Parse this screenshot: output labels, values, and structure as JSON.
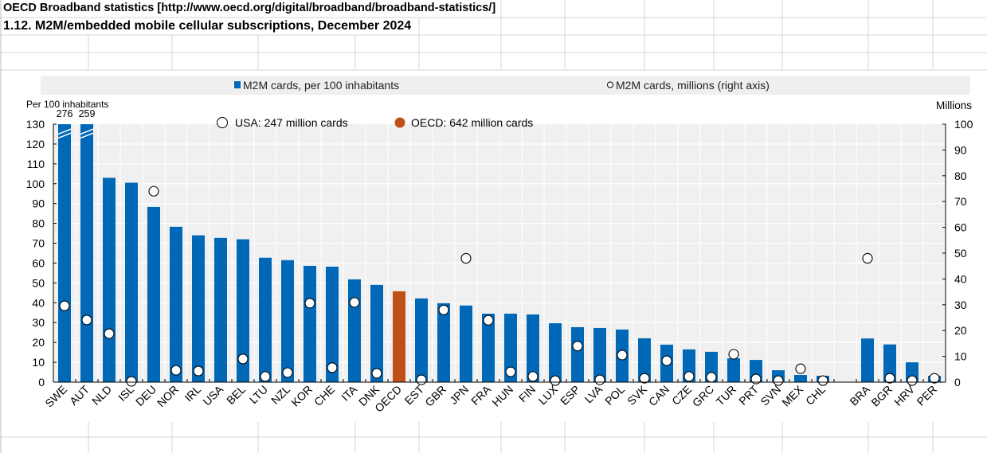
{
  "header": {
    "source": "OECD Broadband statistics [http://www.oecd.org/digital/broadband/broadband-statistics/]",
    "title": "1.12. M2M/embedded mobile cellular subscriptions, December 2024"
  },
  "colors": {
    "bar": "#0068b7",
    "oecd_bar": "#c0501a",
    "plot_bg": "#f0f0f0",
    "legend_bg": "#efefef"
  },
  "chart_data": {
    "type": "bar",
    "title": "1.12. M2M/embedded mobile cellular subscriptions, December 2024",
    "ylabel_left": "Per 100 inhabitants",
    "ylabel_right": "Millions",
    "ylim_left": [
      0,
      130
    ],
    "ylim_right": [
      0,
      100
    ],
    "yticks_left": [
      0,
      10,
      20,
      30,
      40,
      50,
      60,
      70,
      80,
      90,
      100,
      110,
      120,
      130
    ],
    "yticks_right": [
      0,
      10,
      20,
      30,
      40,
      50,
      60,
      70,
      80,
      90,
      100
    ],
    "grid": true,
    "legend_position": "top",
    "legend": [
      {
        "label": "M2M cards, per 100 inhabitants",
        "marker": "square"
      },
      {
        "label": "M2M cards, millions (right axis)",
        "marker": "circle"
      }
    ],
    "annotations": [
      {
        "text": "USA: 247 million cards",
        "marker": "hollow-circle"
      },
      {
        "text": "OECD: 642 million cards",
        "marker": "filled-circle"
      }
    ],
    "categories": [
      "SWE",
      "AUT",
      "NLD",
      "ISL",
      "DEU",
      "NOR",
      "IRL",
      "USA",
      "BEL",
      "LTU",
      "NZL",
      "KOR",
      "CHE",
      "ITA",
      "DNK",
      "OECD",
      "EST",
      "GBR",
      "JPN",
      "FRA",
      "HUN",
      "FIN",
      "LUX",
      "ESP",
      "LVA",
      "POL",
      "SVK",
      "CAN",
      "CZE",
      "GRC",
      "TUR",
      "PRT",
      "SVN",
      "MEX",
      "CHL",
      "",
      "BRA",
      "BGR",
      "HRV",
      "PER"
    ],
    "series": [
      {
        "name": "M2M cards, per 100 inhabitants",
        "axis": "left",
        "values": [
          276,
          259,
          103,
          100.5,
          88.3,
          78.3,
          74,
          72.7,
          72,
          62.7,
          61.5,
          58.6,
          58.2,
          51.8,
          49,
          45.8,
          42.2,
          39.8,
          38.6,
          34.5,
          34.5,
          34.1,
          29.7,
          27.7,
          27.3,
          26.5,
          22.1,
          18.9,
          16.5,
          15.3,
          12,
          11.2,
          6,
          3.6,
          3.2,
          null,
          22,
          19,
          10,
          3.2
        ],
        "break_labels": {
          "SWE": "276",
          "AUT": "259"
        }
      },
      {
        "name": "M2M cards, millions (right axis)",
        "axis": "right",
        "values": [
          29.6,
          24.1,
          18.8,
          0.3,
          74,
          4.6,
          4.3,
          null,
          9,
          2.2,
          3.7,
          30.6,
          5.6,
          30.9,
          3.4,
          null,
          0.9,
          28,
          48,
          24,
          4,
          2.2,
          0.6,
          14,
          0.9,
          10.5,
          1.5,
          8.3,
          2.2,
          1.9,
          10.8,
          1.2,
          0.6,
          5.2,
          0.6,
          null,
          48,
          1.5,
          0.6,
          1.5
        ]
      }
    ],
    "highlight": "OECD"
  }
}
